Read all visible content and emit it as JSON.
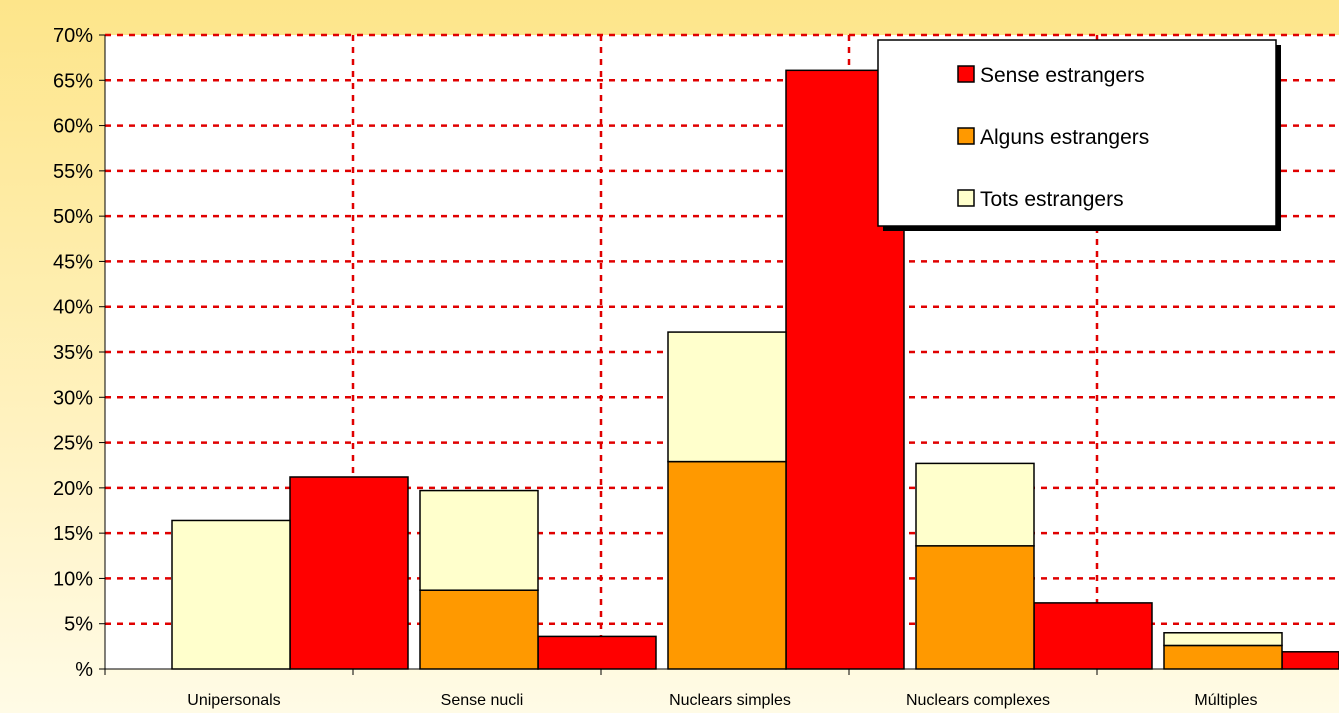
{
  "colors": {
    "background_top": "#fde58a",
    "plot_background": "#ffffff",
    "gridline": "#e00000",
    "sense_estrangers": "#ff0000",
    "alguns_estrangers": "#ff9900",
    "tots_estrangers": "#ffffcc"
  },
  "chart_data": {
    "type": "bar",
    "title": "",
    "xlabel": "",
    "ylabel": "",
    "ylim": [
      0,
      70
    ],
    "y_ticks": [
      0,
      5,
      10,
      15,
      20,
      25,
      30,
      35,
      40,
      45,
      50,
      55,
      60,
      65,
      70
    ],
    "y_tick_labels": [
      "%",
      "5%",
      "10%",
      "15%",
      "20%",
      "25%",
      "30%",
      "35%",
      "40%",
      "45%",
      "50%",
      "55%",
      "60%",
      "65%",
      "70%"
    ],
    "grid": true,
    "legend_position": "top-right",
    "categories": [
      "Unipersonals",
      "Sense nucli",
      "Nuclears simples",
      "Nuclears complexes",
      "Múltiples"
    ],
    "stacked_group": [
      "Tots estrangers",
      "Alguns estrangers"
    ],
    "series": [
      {
        "name": "Sense estrangers",
        "color": "#ff0000",
        "values": [
          21.2,
          3.6,
          66.1,
          7.3,
          1.9
        ]
      },
      {
        "name": "Alguns estrangers",
        "color": "#ff9900",
        "values": [
          0,
          8.7,
          22.9,
          13.6,
          2.6
        ]
      },
      {
        "name": "Tots estrangers",
        "color": "#ffffcc",
        "values": [
          16.4,
          11.0,
          14.3,
          9.1,
          1.4
        ]
      }
    ],
    "legend": [
      "Sense estrangers",
      "Alguns estrangers",
      "Tots estrangers"
    ]
  }
}
